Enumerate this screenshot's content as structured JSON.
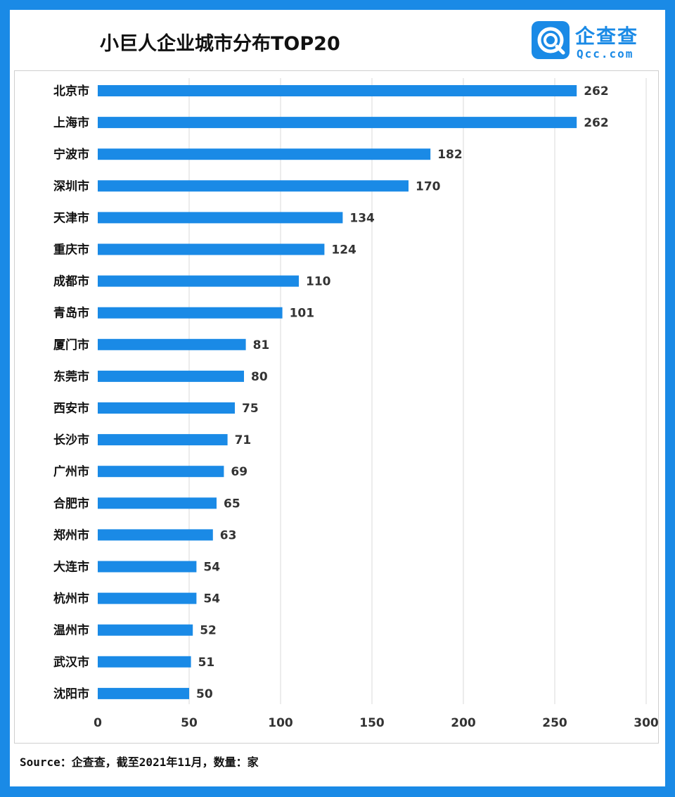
{
  "chart_data": {
    "type": "bar",
    "orientation": "horizontal",
    "title": "小巨人企业城市分布TOP20",
    "categories": [
      "北京市",
      "上海市",
      "宁波市",
      "深圳市",
      "天津市",
      "重庆市",
      "成都市",
      "青岛市",
      "厦门市",
      "东莞市",
      "西安市",
      "长沙市",
      "广州市",
      "合肥市",
      "郑州市",
      "大连市",
      "杭州市",
      "温州市",
      "武汉市",
      "沈阳市"
    ],
    "values": [
      262,
      262,
      182,
      170,
      134,
      124,
      110,
      101,
      81,
      80,
      75,
      71,
      69,
      65,
      63,
      54,
      54,
      52,
      51,
      50
    ],
    "xlim": [
      0,
      300
    ],
    "x_ticks": [
      "0",
      "50",
      "100",
      "150",
      "200",
      "250",
      "300"
    ],
    "grid": "vertical",
    "xlabel": "",
    "ylabel": "",
    "bar_color": "#1a8ae6"
  },
  "brand": {
    "name": "企查查",
    "domain": "Qcc.com",
    "color": "#1a8ae6"
  },
  "source_note": "Source：企查查，截至2021年11月，数量：家"
}
